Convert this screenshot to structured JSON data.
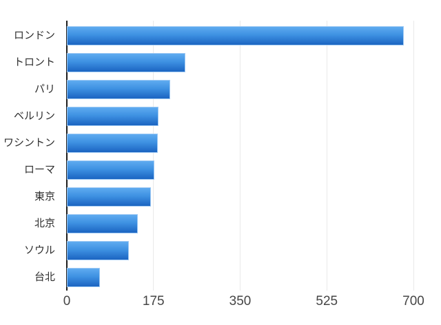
{
  "chart_data": {
    "type": "bar",
    "orientation": "horizontal",
    "title": "",
    "xlabel": "",
    "ylabel": "",
    "categories": [
      "ロンドン",
      "トロント",
      "パリ",
      "ベルリン",
      "ワシントン",
      "ローマ",
      "東京",
      "北京",
      "ソウル",
      "台北"
    ],
    "values": [
      680,
      240,
      209,
      185,
      184,
      177,
      170,
      143,
      125,
      67
    ],
    "xlim": [
      0,
      700
    ],
    "xticks": [
      0,
      175,
      350,
      525,
      700
    ],
    "xtick_labels": [
      "0",
      "175",
      "350",
      "525",
      "700"
    ],
    "grid": true,
    "legend": false,
    "colors": {
      "bar_gradient_top": "#5fabf0",
      "bar_gradient_mid": "#3e91e2",
      "bar_gradient_bottom": "#1b64c1",
      "bar_border": "#a2cbf4",
      "axis_line": "#1c1c1c",
      "gridline": "#e9e9e9",
      "category_label_text": "#2e2e2e",
      "tick_label_text": "#454545",
      "background": "#ffffff"
    }
  }
}
